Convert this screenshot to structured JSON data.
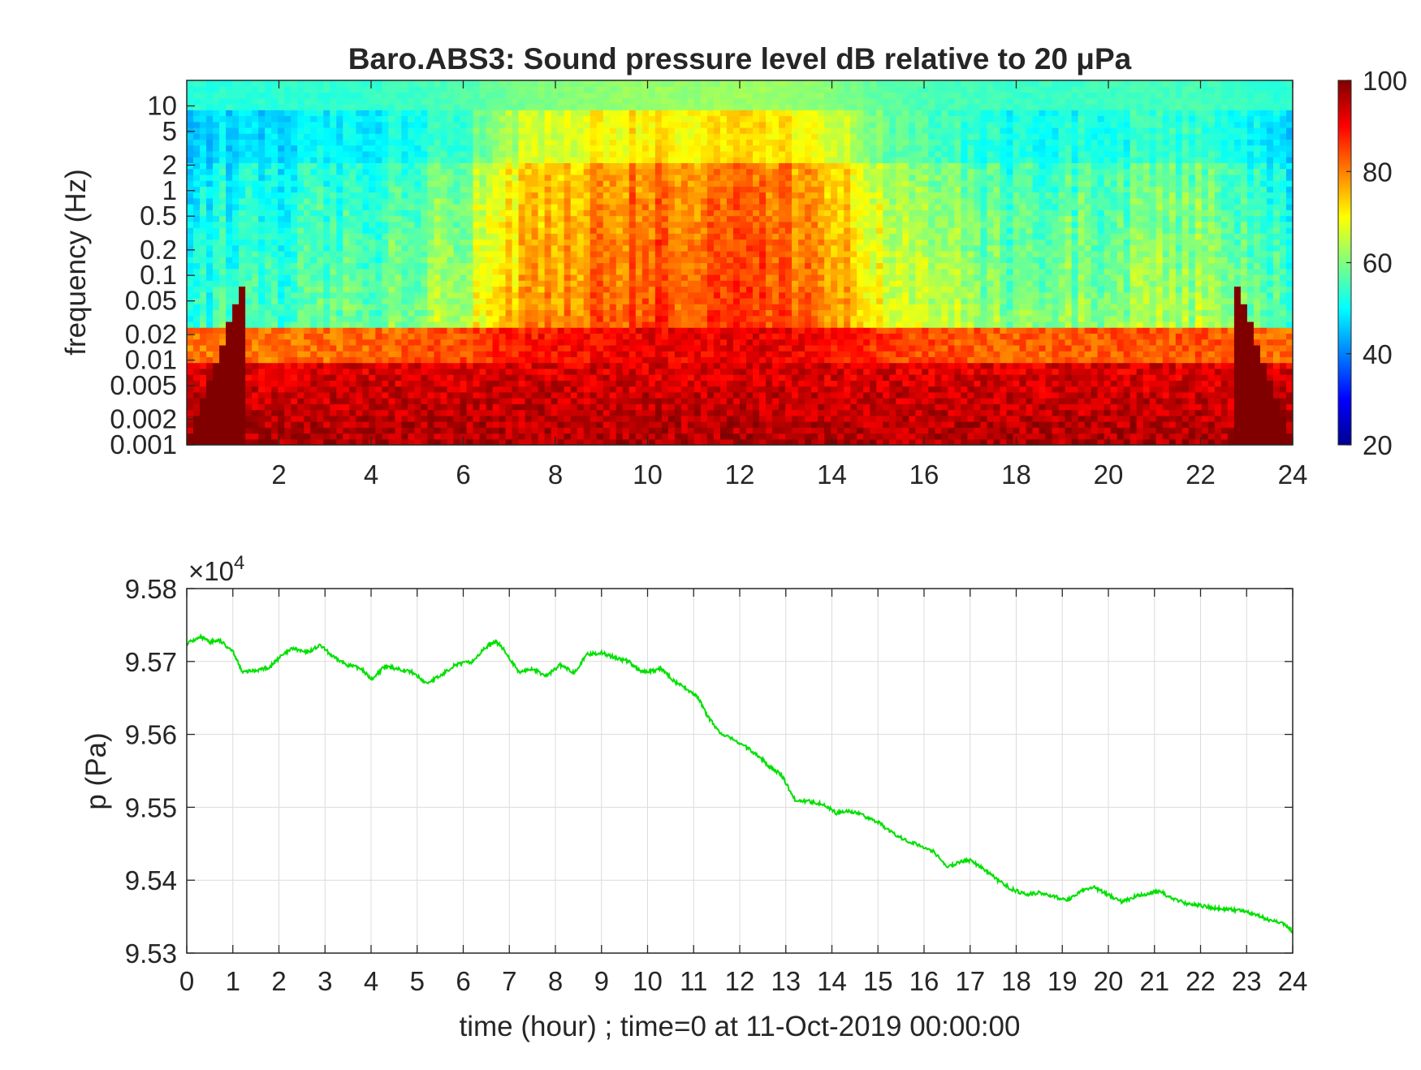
{
  "chart_data": [
    {
      "type": "heatmap",
      "title": "Baro.ABS3: Sound pressure level dB relative to 20 μPa",
      "ylabel": "frequency (Hz)",
      "xlabel": "",
      "x_ticks": [
        "2",
        "4",
        "6",
        "8",
        "10",
        "12",
        "14",
        "16",
        "18",
        "20",
        "22",
        "24"
      ],
      "x_range": [
        0,
        24
      ],
      "y_scale": "log",
      "y_range": [
        0.001,
        20
      ],
      "y_ticks": [
        "0.001",
        "0.002",
        "0.005",
        "0.01",
        "0.02",
        "0.05",
        "0.1",
        "0.2",
        "0.5",
        "1",
        "2",
        "5",
        "10"
      ],
      "colorbar": {
        "colormap": "jet",
        "range": [
          20,
          100
        ],
        "ticks": [
          "20",
          "40",
          "60",
          "80",
          "100"
        ]
      },
      "hour_intensity": [
        [
          0,
          0.05
        ],
        [
          2,
          0.1
        ],
        [
          4,
          0.15
        ],
        [
          6,
          0.35
        ],
        [
          7,
          0.65
        ],
        [
          9,
          0.85
        ],
        [
          10,
          0.95
        ],
        [
          11,
          0.9
        ],
        [
          12.5,
          1.0
        ],
        [
          14,
          0.8
        ],
        [
          15,
          0.5
        ],
        [
          16,
          0.35
        ],
        [
          18,
          0.2
        ],
        [
          20,
          0.25
        ],
        [
          22,
          0.3
        ],
        [
          24,
          0.05
        ]
      ]
    },
    {
      "type": "line",
      "ylabel": "p (Pa)",
      "xlabel": "time (hour) ; time=0 at 11-Oct-2019 00:00:00",
      "x_range": [
        0,
        24
      ],
      "x_ticks": [
        "0",
        "1",
        "2",
        "3",
        "4",
        "5",
        "6",
        "7",
        "8",
        "9",
        "10",
        "11",
        "12",
        "13",
        "14",
        "15",
        "16",
        "17",
        "18",
        "19",
        "20",
        "21",
        "22",
        "23",
        "24"
      ],
      "ylim": [
        95300,
        95800
      ],
      "y_ticks": [
        "9.53",
        "9.54",
        "9.55",
        "9.56",
        "9.57",
        "9.58"
      ],
      "y_exponent_label": "×10",
      "y_exponent_power": "4",
      "grid": true,
      "series": [
        {
          "color": "#00e000",
          "x": [
            0,
            0.3,
            0.5,
            0.7,
            1.0,
            1.2,
            1.5,
            1.8,
            2.0,
            2.3,
            2.6,
            2.9,
            3.2,
            3.5,
            3.8,
            4.0,
            4.3,
            4.6,
            4.9,
            5.2,
            5.5,
            5.8,
            6.2,
            6.5,
            6.7,
            6.9,
            7.2,
            7.5,
            7.8,
            8.1,
            8.4,
            8.7,
            9.0,
            9.3,
            9.6,
            9.8,
            10.0,
            10.3,
            10.6,
            10.9,
            11.1,
            11.3,
            11.6,
            11.9,
            12.2,
            12.5,
            12.7,
            12.9,
            13.2,
            13.5,
            13.8,
            14.1,
            14.4,
            14.7,
            15.0,
            15.3,
            15.6,
            15.9,
            16.2,
            16.5,
            16.8,
            17.0,
            17.3,
            17.6,
            17.9,
            18.2,
            18.5,
            18.8,
            19.1,
            19.4,
            19.7,
            20.0,
            20.3,
            20.6,
            20.9,
            21.1,
            21.4,
            21.7,
            22.0,
            22.3,
            22.6,
            22.9,
            23.2,
            23.5,
            23.8,
            24.0
          ],
          "values": [
            95725,
            95733,
            95727,
            95729,
            95715,
            95685,
            95688,
            95692,
            95705,
            95718,
            95712,
            95722,
            95705,
            95695,
            95690,
            95675,
            95693,
            95690,
            95685,
            95670,
            95680,
            95695,
            95700,
            95720,
            95728,
            95715,
            95685,
            95690,
            95680,
            95695,
            95685,
            95710,
            95712,
            95705,
            95700,
            95688,
            95685,
            95690,
            95672,
            95660,
            95650,
            95625,
            95600,
            95592,
            95580,
            95565,
            95553,
            95545,
            95510,
            95508,
            95505,
            95492,
            95495,
            95488,
            95480,
            95465,
            95455,
            95448,
            95440,
            95418,
            95425,
            95428,
            95415,
            95400,
            95388,
            95380,
            95383,
            95378,
            95372,
            95385,
            95390,
            95380,
            95370,
            95378,
            95382,
            95385,
            95375,
            95368,
            95365,
            95362,
            95360,
            95358,
            95353,
            95345,
            95340,
            95330
          ]
        }
      ]
    }
  ]
}
